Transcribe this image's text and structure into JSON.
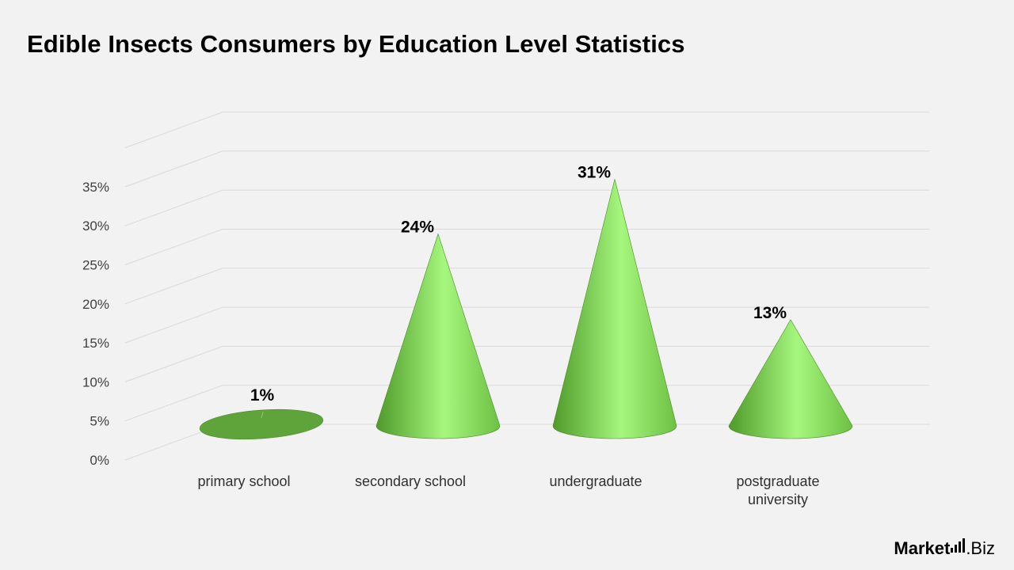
{
  "title": "Edible Insects Consumers by Education Level Statistics",
  "logo": {
    "brand": "Market",
    "suffix": ".Biz"
  },
  "colors": {
    "cone_dark": "#4f9a2a",
    "cone_light": "#a6f77e",
    "grid": "#d9d9d9",
    "text": "#000000",
    "axis_text": "#404040"
  },
  "chart_data": {
    "type": "bar",
    "shape": "cone",
    "categories": [
      "primary school",
      "secondary school",
      "undergraduate",
      "postgraduate university"
    ],
    "values": [
      1,
      24,
      31,
      13
    ],
    "data_labels": [
      "1%",
      "24%",
      "31%",
      "13%"
    ],
    "y_ticks": [
      "0%",
      "5%",
      "10%",
      "15%",
      "20%",
      "25%",
      "30%",
      "35%"
    ],
    "ylim": [
      0,
      35
    ],
    "grid": true,
    "legend": "none"
  }
}
